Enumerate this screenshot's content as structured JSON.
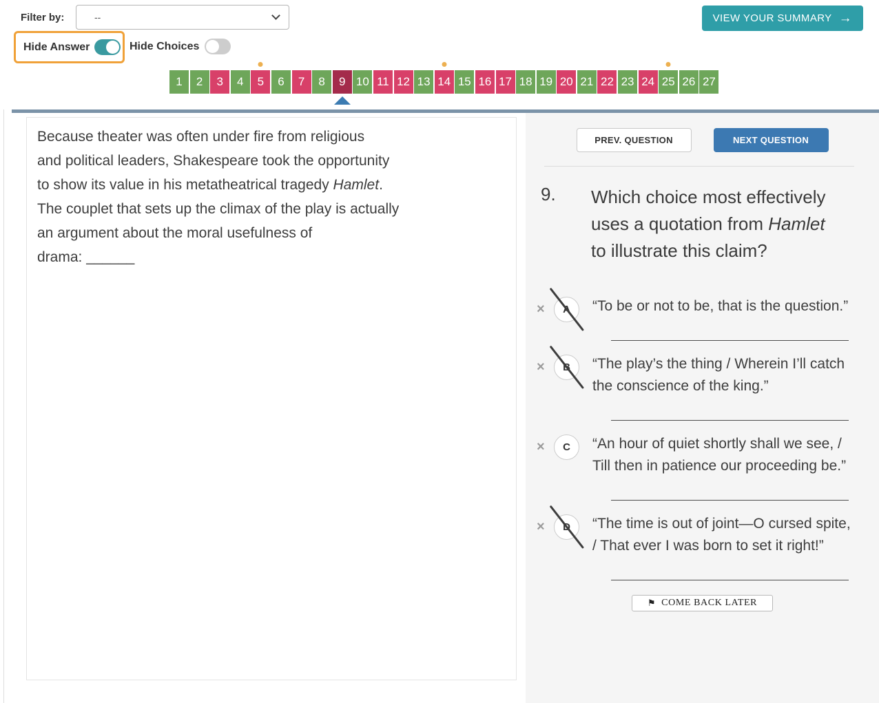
{
  "colors": {
    "teal": "#2f9ea8",
    "toggle-on": "#3a9aa0",
    "orange": "#f0a138",
    "green": "#6ea65a",
    "red": "#d84069",
    "current": "#a42b4b",
    "dot": "#edb050",
    "pointer": "#3c7cb2",
    "bar": "#7b93a8",
    "blue": "#3c79b2"
  },
  "header": {
    "filter_label": "Filter by:",
    "filter_value": "--",
    "summary_button_label": "VIEW YOUR SUMMARY",
    "summary_arrow": "→",
    "hide_answer_label": "Hide Answer",
    "hide_answer_on": true,
    "hide_choices_label": "Hide Choices",
    "hide_choices_on": false
  },
  "question_nav": {
    "current": "9",
    "tiles": [
      {
        "label": "1",
        "state": "green",
        "flagged": false
      },
      {
        "label": "2",
        "state": "green",
        "flagged": false
      },
      {
        "label": "3",
        "state": "red",
        "flagged": false
      },
      {
        "label": "4",
        "state": "green",
        "flagged": false
      },
      {
        "label": "5",
        "state": "red",
        "flagged": true
      },
      {
        "label": "6",
        "state": "green",
        "flagged": false
      },
      {
        "label": "7",
        "state": "red",
        "flagged": false
      },
      {
        "label": "8",
        "state": "green",
        "flagged": false
      },
      {
        "label": "9",
        "state": "current",
        "flagged": false
      },
      {
        "label": "10",
        "state": "green",
        "flagged": false
      },
      {
        "label": "11",
        "state": "red",
        "flagged": false
      },
      {
        "label": "12",
        "state": "red",
        "flagged": false
      },
      {
        "label": "13",
        "state": "green",
        "flagged": false
      },
      {
        "label": "14",
        "state": "red",
        "flagged": true
      },
      {
        "label": "15",
        "state": "green",
        "flagged": false
      },
      {
        "label": "16",
        "state": "red",
        "flagged": false
      },
      {
        "label": "17",
        "state": "red",
        "flagged": false
      },
      {
        "label": "18",
        "state": "green",
        "flagged": false
      },
      {
        "label": "19",
        "state": "green",
        "flagged": false
      },
      {
        "label": "20",
        "state": "red",
        "flagged": false
      },
      {
        "label": "21",
        "state": "green",
        "flagged": false
      },
      {
        "label": "22",
        "state": "red",
        "flagged": false
      },
      {
        "label": "23",
        "state": "green",
        "flagged": false
      },
      {
        "label": "24",
        "state": "red",
        "flagged": false
      },
      {
        "label": "25",
        "state": "green",
        "flagged": true
      },
      {
        "label": "26",
        "state": "green",
        "flagged": false
      },
      {
        "label": "27",
        "state": "green",
        "flagged": false
      }
    ]
  },
  "passage": {
    "lines": [
      [
        {
          "t": "Because theater was often under fire from religious"
        }
      ],
      [
        {
          "t": "and political leaders, Shakespeare took the opportunity"
        }
      ],
      [
        {
          "t": "to show its value in his metatheatrical tragedy "
        },
        {
          "t": "Hamlet",
          "i": true
        },
        {
          "t": "."
        }
      ],
      [
        {
          "t": "The couplet that sets up the climax of the play is actually"
        }
      ],
      [
        {
          "t": "an argument about the moral usefulness of"
        }
      ],
      [
        {
          "t": "drama: "
        },
        {
          "t": "______"
        }
      ]
    ]
  },
  "panel": {
    "prev_button": "PREV. QUESTION",
    "next_button": "NEXT QUESTION",
    "question_number": "9.",
    "question_lines": [
      [
        {
          "t": "Which choice most effectively"
        }
      ],
      [
        {
          "t": "uses a quotation from "
        },
        {
          "t": "Hamlet",
          "i": true
        }
      ],
      [
        {
          "t": "to illustrate this claim?"
        }
      ]
    ],
    "x_icon": "×",
    "choices": [
      {
        "letter": "A",
        "text": "“To be or not to be, that is the question.”",
        "eliminated": true
      },
      {
        "letter": "B",
        "text": "“The play’s the thing / Wherein I’ll catch the conscience of the king.”",
        "eliminated": true
      },
      {
        "letter": "C",
        "text": "“An hour of quiet shortly shall we see, / Till then in patience our proceeding be.”",
        "eliminated": false
      },
      {
        "letter": "D",
        "text": "“The time is out of joint—O cursed spite, / That ever I was born to set it right!”",
        "eliminated": true
      }
    ],
    "flag_icon": "⚑",
    "come_back_label": "COME BACK LATER"
  }
}
